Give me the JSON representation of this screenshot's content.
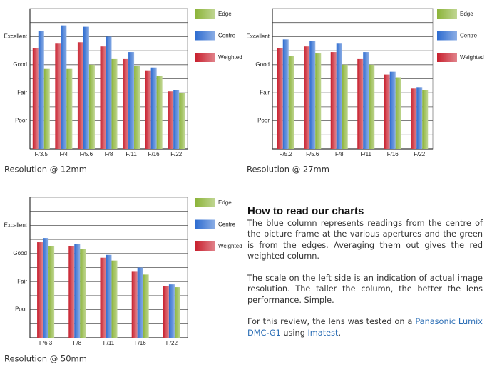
{
  "chart_data": [
    {
      "type": "bar",
      "caption": "Resolution @ 12mm",
      "categories": [
        "F/3.5",
        "F/4",
        "F/5.6",
        "F/8",
        "F/11",
        "F/16",
        "F/22"
      ],
      "series": [
        {
          "name": "Edge",
          "color": "#8cb43a",
          "values": [
            5.7,
            5.7,
            6.0,
            6.4,
            5.9,
            5.2,
            4.0
          ]
        },
        {
          "name": "Centre",
          "color": "#2e6cd0",
          "values": [
            8.4,
            8.8,
            8.7,
            8.0,
            6.9,
            5.8,
            4.2
          ]
        },
        {
          "name": "Weighted",
          "color": "#c8202e",
          "values": [
            7.2,
            7.5,
            7.6,
            7.3,
            6.4,
            5.6,
            4.1
          ]
        }
      ],
      "ylim": [
        0,
        10
      ],
      "yticks": [
        {
          "value": 2,
          "label": "Poor"
        },
        {
          "value": 4,
          "label": "Fair"
        },
        {
          "value": 6,
          "label": "Good"
        },
        {
          "value": 8,
          "label": "Excellent"
        }
      ],
      "minor_yticks": [
        1,
        3,
        5,
        7,
        9
      ],
      "grid": true,
      "legend": "right"
    },
    {
      "type": "bar",
      "caption": "Resolution @ 27mm",
      "categories": [
        "F/5.2",
        "F/5.6",
        "F/8",
        "F/11",
        "F/16",
        "F/22"
      ],
      "series": [
        {
          "name": "Edge",
          "color": "#8cb43a",
          "values": [
            6.6,
            6.8,
            6.0,
            6.0,
            5.1,
            4.2
          ]
        },
        {
          "name": "Centre",
          "color": "#2e6cd0",
          "values": [
            7.8,
            7.7,
            7.5,
            6.9,
            5.5,
            4.4
          ]
        },
        {
          "name": "Weighted",
          "color": "#c8202e",
          "values": [
            7.2,
            7.3,
            6.9,
            6.4,
            5.3,
            4.3
          ]
        }
      ],
      "ylim": [
        0,
        10
      ],
      "yticks": [
        {
          "value": 2,
          "label": "Poor"
        },
        {
          "value": 4,
          "label": "Fair"
        },
        {
          "value": 6,
          "label": "Good"
        },
        {
          "value": 8,
          "label": "Excellent"
        }
      ],
      "minor_yticks": [
        1,
        3,
        5,
        7,
        9
      ],
      "grid": true,
      "legend": "right"
    },
    {
      "type": "bar",
      "caption": "Resolution @ 50mm",
      "categories": [
        "F/6.3",
        "F/8",
        "F/11",
        "F/16",
        "F/22"
      ],
      "series": [
        {
          "name": "Edge",
          "color": "#8cb43a",
          "values": [
            6.5,
            6.3,
            5.5,
            4.5,
            3.6
          ]
        },
        {
          "name": "Centre",
          "color": "#2e6cd0",
          "values": [
            7.1,
            6.7,
            5.9,
            5.0,
            3.8
          ]
        },
        {
          "name": "Weighted",
          "color": "#c8202e",
          "values": [
            6.8,
            6.5,
            5.7,
            4.7,
            3.7
          ]
        }
      ],
      "ylim": [
        0,
        10
      ],
      "yticks": [
        {
          "value": 2,
          "label": "Poor"
        },
        {
          "value": 4,
          "label": "Fair"
        },
        {
          "value": 6,
          "label": "Good"
        },
        {
          "value": 8,
          "label": "Excellent"
        }
      ],
      "minor_yticks": [
        1,
        3,
        5,
        7,
        9
      ],
      "grid": true,
      "legend": "right"
    }
  ],
  "article": {
    "title": "How to read our charts",
    "paragraphs": [
      "The blue column represents readings from the centre of the picture frame at the various apertures and the green is from the edges. Averaging them out gives the red weighted column.",
      "The scale on the left side is an indication of actual image resolution. The taller the column, the better the lens performance. Simple."
    ],
    "closing": {
      "before": "For this review, the lens was tested on a",
      "link1": "Panasonic Lumix DMC-G1",
      "middle": "using",
      "link2": "Imatest",
      "after": "."
    }
  }
}
